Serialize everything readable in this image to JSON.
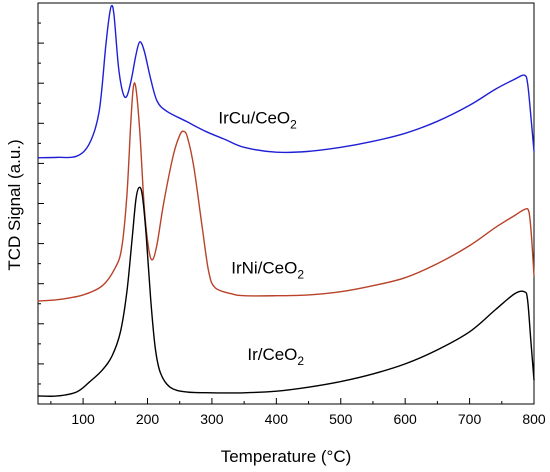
{
  "chart_data": {
    "type": "line",
    "title": "",
    "xlabel": "Temperature (°C)",
    "ylabel": "TCD Signal (a.u.)",
    "xlim": [
      30,
      800
    ],
    "ylim": [
      0,
      10
    ],
    "xticks": [
      100,
      200,
      300,
      400,
      500,
      600,
      700,
      800
    ],
    "xtick_labels": [
      "100",
      "200",
      "300",
      "400",
      "500",
      "600",
      "700",
      "800"
    ],
    "y_tick_labels_shown": false,
    "grid": false,
    "legend": "none",
    "series": [
      {
        "name": "IrCu/CeO₂",
        "label": {
          "main": "IrCu/CeO",
          "sub": "2",
          "at": [
            310,
            7.0
          ]
        },
        "color": "#1f1fd6",
        "points": [
          [
            30,
            6.14
          ],
          [
            60,
            6.15
          ],
          [
            90,
            6.18
          ],
          [
            110,
            6.5
          ],
          [
            125,
            7.3
          ],
          [
            135,
            8.9
          ],
          [
            140,
            9.6
          ],
          [
            144,
            9.93
          ],
          [
            148,
            9.7
          ],
          [
            155,
            8.4
          ],
          [
            162,
            7.75
          ],
          [
            168,
            7.68
          ],
          [
            175,
            8.1
          ],
          [
            182,
            8.7
          ],
          [
            188,
            9.03
          ],
          [
            195,
            8.8
          ],
          [
            205,
            8.1
          ],
          [
            215,
            7.55
          ],
          [
            230,
            7.3
          ],
          [
            260,
            7.05
          ],
          [
            290,
            6.8
          ],
          [
            320,
            6.6
          ],
          [
            350,
            6.4
          ],
          [
            400,
            6.28
          ],
          [
            450,
            6.3
          ],
          [
            500,
            6.4
          ],
          [
            550,
            6.55
          ],
          [
            600,
            6.75
          ],
          [
            650,
            7.05
          ],
          [
            700,
            7.45
          ],
          [
            740,
            7.85
          ],
          [
            770,
            8.1
          ],
          [
            785,
            8.2
          ],
          [
            790,
            8.0
          ],
          [
            795,
            7.2
          ],
          [
            800,
            6.3
          ]
        ]
      },
      {
        "name": "IrNi/CeO₂",
        "label": {
          "main": "IrNi/CeO",
          "sub": "2",
          "at": [
            330,
            3.25
          ]
        },
        "color": "#b8432a",
        "points": [
          [
            30,
            2.57
          ],
          [
            60,
            2.6
          ],
          [
            100,
            2.72
          ],
          [
            130,
            2.95
          ],
          [
            150,
            3.4
          ],
          [
            160,
            3.9
          ],
          [
            168,
            5.2
          ],
          [
            174,
            7.0
          ],
          [
            178,
            7.9
          ],
          [
            182,
            7.88
          ],
          [
            188,
            6.8
          ],
          [
            195,
            4.9
          ],
          [
            202,
            3.85
          ],
          [
            208,
            3.6
          ],
          [
            215,
            4.0
          ],
          [
            225,
            5.0
          ],
          [
            240,
            6.2
          ],
          [
            250,
            6.7
          ],
          [
            256,
            6.8
          ],
          [
            262,
            6.65
          ],
          [
            272,
            5.9
          ],
          [
            285,
            4.4
          ],
          [
            295,
            3.3
          ],
          [
            305,
            2.9
          ],
          [
            330,
            2.75
          ],
          [
            350,
            2.7
          ],
          [
            400,
            2.7
          ],
          [
            450,
            2.72
          ],
          [
            500,
            2.8
          ],
          [
            550,
            2.95
          ],
          [
            600,
            3.15
          ],
          [
            650,
            3.5
          ],
          [
            700,
            3.95
          ],
          [
            740,
            4.4
          ],
          [
            770,
            4.7
          ],
          [
            785,
            4.85
          ],
          [
            792,
            4.8
          ],
          [
            796,
            4.2
          ],
          [
            800,
            3.2
          ]
        ]
      },
      {
        "name": "Ir/CeO₂",
        "label": {
          "main": "Ir/CeO",
          "sub": "2",
          "at": [
            355,
            1.1
          ]
        },
        "color": "#000000",
        "points": [
          [
            30,
            0.2
          ],
          [
            60,
            0.2
          ],
          [
            90,
            0.3
          ],
          [
            110,
            0.55
          ],
          [
            130,
            0.85
          ],
          [
            145,
            1.2
          ],
          [
            158,
            1.8
          ],
          [
            168,
            2.8
          ],
          [
            176,
            4.1
          ],
          [
            182,
            5.1
          ],
          [
            187,
            5.4
          ],
          [
            192,
            5.2
          ],
          [
            198,
            4.2
          ],
          [
            205,
            2.6
          ],
          [
            212,
            1.4
          ],
          [
            220,
            0.78
          ],
          [
            235,
            0.42
          ],
          [
            260,
            0.3
          ],
          [
            300,
            0.28
          ],
          [
            350,
            0.28
          ],
          [
            400,
            0.32
          ],
          [
            450,
            0.42
          ],
          [
            500,
            0.56
          ],
          [
            550,
            0.75
          ],
          [
            600,
            1.0
          ],
          [
            650,
            1.35
          ],
          [
            700,
            1.8
          ],
          [
            740,
            2.35
          ],
          [
            770,
            2.75
          ],
          [
            785,
            2.8
          ],
          [
            790,
            2.6
          ],
          [
            795,
            1.6
          ],
          [
            800,
            0.6
          ]
        ]
      }
    ]
  }
}
